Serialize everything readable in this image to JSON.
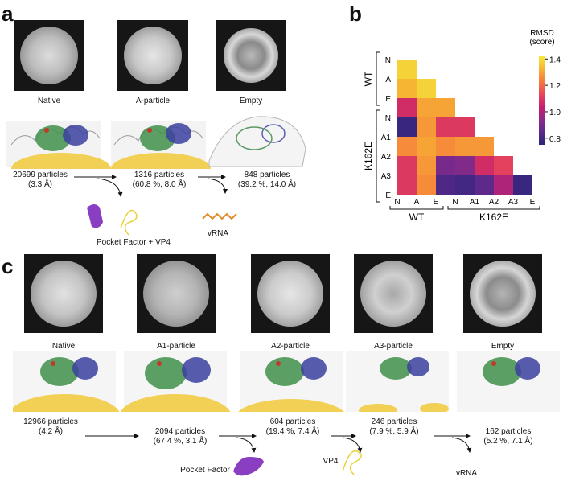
{
  "panel_a": {
    "letter": "a",
    "class_labels": [
      "Native",
      "A-particle",
      "Empty"
    ],
    "particles": [
      {
        "count": "20699 particles",
        "detail": "(3.3 Å)"
      },
      {
        "count": "1316 particles",
        "detail": "(60.8 %, 8.0 Å)"
      },
      {
        "count": "848 particles",
        "detail": "(39.2 %, 14.0 Å)"
      }
    ],
    "released": [
      "Pocket Factor + VP4",
      "vRNA"
    ]
  },
  "panel_b": {
    "letter": "b",
    "colorbar_title": "RMSD",
    "colorbar_subtitle": "(score)",
    "colorbar_ticks": [
      "1.4",
      "1.2",
      "1.0",
      "0.8"
    ],
    "groups": [
      "WT",
      "K162E"
    ],
    "row_labels": [
      "N",
      "A",
      "E",
      "N",
      "A1",
      "A2",
      "A3",
      "E"
    ],
    "col_labels": [
      "N",
      "A",
      "E",
      "N",
      "A1",
      "A2",
      "A3",
      "E"
    ],
    "colors": {
      "low": "#2a2477",
      "high": "#f5e93c"
    }
  },
  "chart_data": {
    "type": "heatmap",
    "title": "RMSD (score)",
    "row_labels": [
      "WT N",
      "WT A",
      "WT E",
      "K162E N",
      "K162E A1",
      "K162E A2",
      "K162E A3",
      "K162E E"
    ],
    "col_labels": [
      "WT N",
      "WT A",
      "WT E",
      "K162E N",
      "K162E A1",
      "K162E A2",
      "K162E A3",
      "K162E E"
    ],
    "color_range": [
      0.75,
      1.42
    ],
    "lower_triangle": [
      [
        1.38
      ],
      [
        1.33,
        1.38
      ],
      [
        1.07,
        1.3,
        1.3
      ],
      [
        0.78,
        1.28,
        1.1,
        1.1
      ],
      [
        1.26,
        1.3,
        1.26,
        1.28,
        1.28
      ],
      [
        1.1,
        1.28,
        0.9,
        0.92,
        1.07,
        1.12
      ],
      [
        1.1,
        1.26,
        0.82,
        0.8,
        0.85,
        1.0,
        0.78
      ]
    ]
  },
  "panel_c": {
    "letter": "c",
    "class_labels": [
      "Native",
      "A1-particle",
      "A2-particle",
      "A3-particle",
      "Empty"
    ],
    "particles": [
      {
        "count": "12966 particles",
        "detail": "(4.2 Å)"
      },
      {
        "count": "2094 particles",
        "detail": "(67.4 %, 3.1 Å)"
      },
      {
        "count": "604 particles",
        "detail": "(19.4 %, 7.4 Å)"
      },
      {
        "count": "246 particles",
        "detail": "(7.9 %, 5.9 Å)"
      },
      {
        "count": "162 particles",
        "detail": "(5.2 %, 7.1 Å)"
      }
    ],
    "released": [
      "Pocket Factor",
      "VP4",
      "vRNA"
    ]
  }
}
